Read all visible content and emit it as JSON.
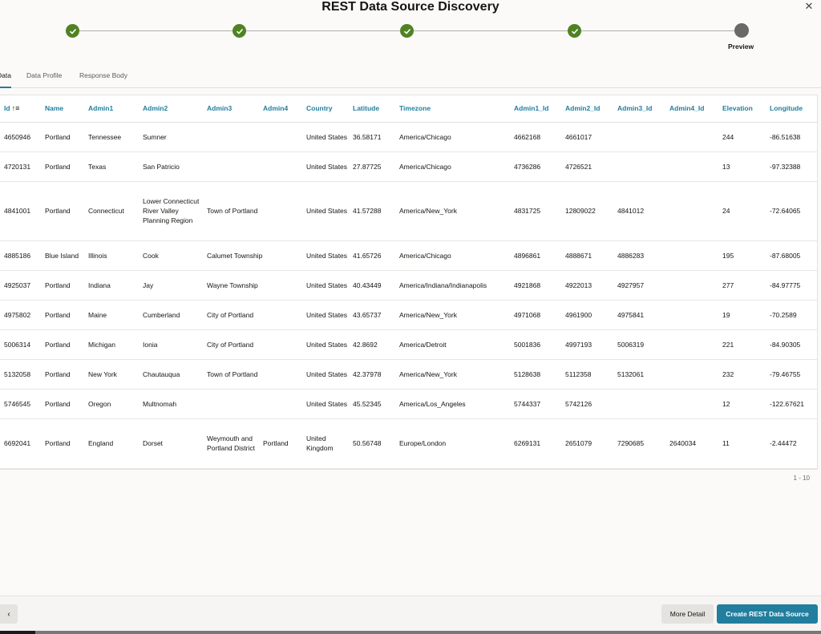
{
  "dialog": {
    "title": "REST Data Source Discovery",
    "close_icon": "close-icon"
  },
  "train": {
    "steps": [
      {
        "status": "complete",
        "label": ""
      },
      {
        "status": "complete",
        "label": ""
      },
      {
        "status": "complete",
        "label": ""
      },
      {
        "status": "complete",
        "label": ""
      },
      {
        "status": "current",
        "label": "Preview"
      }
    ],
    "complete_color": "#508223"
  },
  "tabs": [
    {
      "label": "Data",
      "active": true
    },
    {
      "label": "Data Profile",
      "active": false
    },
    {
      "label": "Response Body",
      "active": false
    }
  ],
  "table": {
    "columns": [
      "Id",
      "Name",
      "Admin1",
      "Admin2",
      "Admin3",
      "Admin4",
      "Country",
      "Latitude",
      "Timezone",
      "Admin1_Id",
      "Admin2_Id",
      "Admin3_Id",
      "Admin4_Id",
      "Elevation",
      "Longitude"
    ],
    "sort_indicator": "↑≡",
    "rows": [
      [
        "4650946",
        "Portland",
        "Tennessee",
        "Sumner",
        "",
        "",
        "United States",
        "36.58171",
        "America/Chicago",
        "4662168",
        "4661017",
        "",
        "",
        "244",
        "-86.51638"
      ],
      [
        "4720131",
        "Portland",
        "Texas",
        "San Patricio",
        "",
        "",
        "United States",
        "27.87725",
        "America/Chicago",
        "4736286",
        "4726521",
        "",
        "",
        "13",
        "-97.32388"
      ],
      [
        "4841001",
        "Portland",
        "Connecticut",
        "Lower Connecticut River Valley Planning Region",
        "Town of Portland",
        "",
        "United States",
        "41.57288",
        "America/New_York",
        "4831725",
        "12809022",
        "4841012",
        "",
        "24",
        "-72.64065"
      ],
      [
        "4885186",
        "Blue Island",
        "Illinois",
        "Cook",
        "Calumet Township",
        "",
        "United States",
        "41.65726",
        "America/Chicago",
        "4896861",
        "4888671",
        "4886283",
        "",
        "195",
        "-87.68005"
      ],
      [
        "4925037",
        "Portland",
        "Indiana",
        "Jay",
        "Wayne Township",
        "",
        "United States",
        "40.43449",
        "America/Indiana/Indianapolis",
        "4921868",
        "4922013",
        "4927957",
        "",
        "277",
        "-84.97775"
      ],
      [
        "4975802",
        "Portland",
        "Maine",
        "Cumberland",
        "City of Portland",
        "",
        "United States",
        "43.65737",
        "America/New_York",
        "4971068",
        "4961900",
        "4975841",
        "",
        "19",
        "-70.2589"
      ],
      [
        "5006314",
        "Portland",
        "Michigan",
        "Ionia",
        "City of Portland",
        "",
        "United States",
        "42.8692",
        "America/Detroit",
        "5001836",
        "4997193",
        "5006319",
        "",
        "221",
        "-84.90305"
      ],
      [
        "5132058",
        "Portland",
        "New York",
        "Chautauqua",
        "Town of Portland",
        "",
        "United States",
        "42.37978",
        "America/New_York",
        "5128638",
        "5112358",
        "5132061",
        "",
        "232",
        "-79.46755"
      ],
      [
        "5746545",
        "Portland",
        "Oregon",
        "Multnomah",
        "",
        "",
        "United States",
        "45.52345",
        "America/Los_Angeles",
        "5744337",
        "5742126",
        "",
        "",
        "12",
        "-122.67621"
      ],
      [
        "6692041",
        "Portland",
        "England",
        "Dorset",
        "Weymouth and Portland District",
        "Portland",
        "United Kingdom",
        "50.56748",
        "Europe/London",
        "6269131",
        "2651079",
        "7290685",
        "2640034",
        "11",
        "-2.44472"
      ]
    ],
    "pager": "1 - 10"
  },
  "footer": {
    "back_icon": "chevron-left-icon",
    "back_symbol": "‹",
    "more_detail_label": "More Detail",
    "create_label": "Create REST Data Source"
  }
}
